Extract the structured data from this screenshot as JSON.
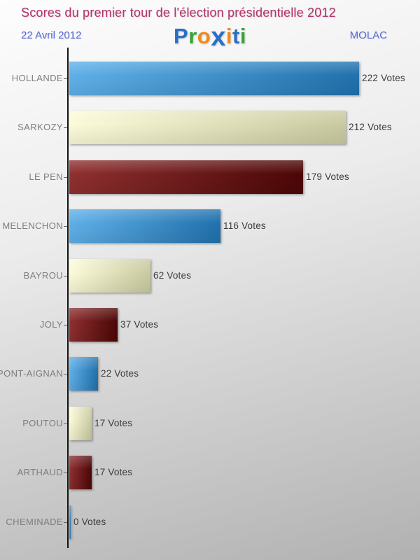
{
  "header": {
    "title": "Scores du premier tour de l'élection présidentielle 2012",
    "date": "22 Avril 2012",
    "location": "MOLAC",
    "title_color": "#b1356b",
    "accent_color": "#5b6bd0"
  },
  "logo": {
    "text": "Proxiti",
    "letters": [
      {
        "char": "P",
        "color": "#2a6fc4"
      },
      {
        "char": "r",
        "color": "#3aa23a"
      },
      {
        "char": "o",
        "color": "#ef8a1c"
      },
      {
        "char": "x",
        "color": "#2a6fc4",
        "emphasis": true
      },
      {
        "char": "i",
        "color": "#ef8a1c"
      },
      {
        "char": "t",
        "color": "#2a6fc4"
      },
      {
        "char": "i",
        "color": "#3aa23a"
      }
    ]
  },
  "chart_data": {
    "type": "bar",
    "orientation": "horizontal",
    "title": "Scores du premier tour de l'élection présidentielle 2012",
    "subtitle": "22 Avril 2012",
    "location": "MOLAC",
    "categories": [
      "HOLLANDE",
      "SARKOZY",
      "LE PEN",
      "MELENCHON",
      "BAYROU",
      "JOLY",
      "DUPONT-AIGNAN",
      "POUTOU",
      "ARTHAUD",
      "CHEMINADE"
    ],
    "values": [
      222,
      212,
      179,
      116,
      62,
      37,
      22,
      17,
      17,
      0
    ],
    "unit": "Votes",
    "xlim": [
      0,
      222
    ],
    "grid": false,
    "axis_tick_numbers_shown": false,
    "value_labels_position": "end-of-bar",
    "bar_color_keys": [
      "blue",
      "cream",
      "darkred",
      "blue",
      "cream",
      "darkred",
      "blue",
      "cream",
      "darkred",
      "blue"
    ],
    "palette": {
      "blue": {
        "start": "#5fb0e8",
        "end": "#2171ad"
      },
      "cream": {
        "start": "#fbfbd9",
        "end": "#c9c9a0"
      },
      "darkred": {
        "start": "#8f3030",
        "end": "#4c0606"
      }
    }
  }
}
